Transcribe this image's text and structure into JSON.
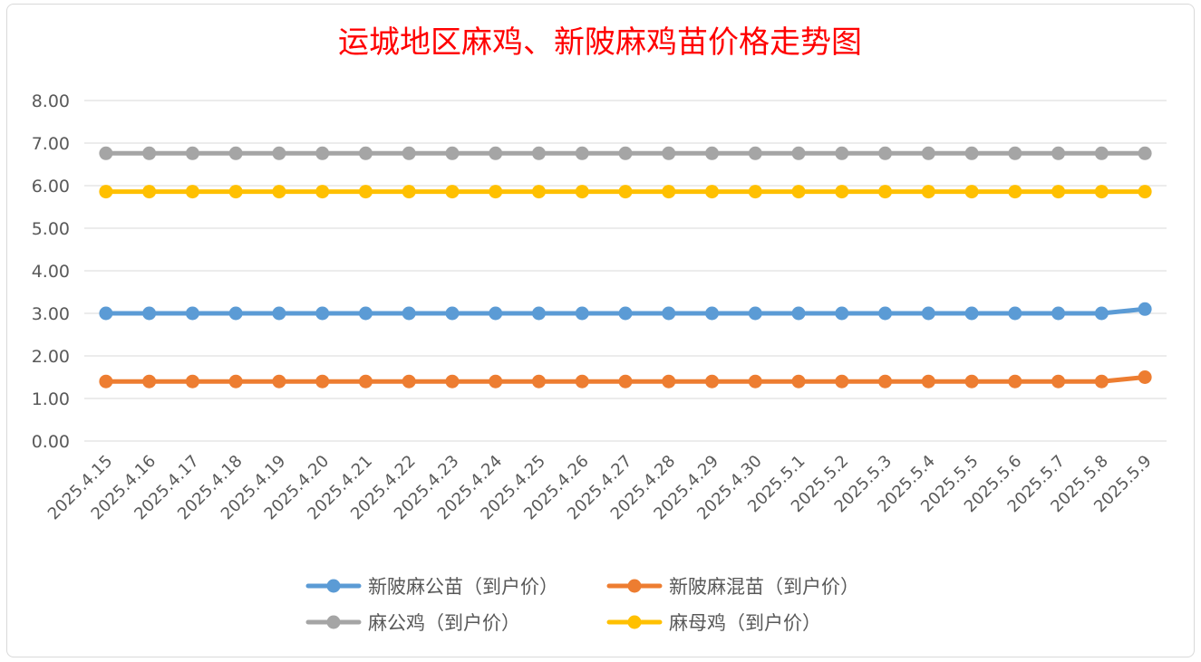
{
  "chart_data": {
    "type": "line",
    "title": "运城地区麻鸡、新陂麻鸡苗价格走势图",
    "xlabel": "",
    "ylabel": "",
    "ylim": [
      0,
      8
    ],
    "yticks": [
      "0.00",
      "1.00",
      "2.00",
      "3.00",
      "4.00",
      "5.00",
      "6.00",
      "7.00",
      "8.00"
    ],
    "grid": true,
    "legend_position": "bottom",
    "categories": [
      "2025.4.15",
      "2025.4.16",
      "2025.4.17",
      "2025.4.18",
      "2025.4.19",
      "2025.4.20",
      "2025.4.21",
      "2025.4.22",
      "2025.4.23",
      "2025.4.24",
      "2025.4.25",
      "2025.4.26",
      "2025.4.27",
      "2025.4.28",
      "2025.4.29",
      "2025.4.30",
      "2025.5.1",
      "2025.5.2",
      "2025.5.3",
      "2025.5.4",
      "2025.5.5",
      "2025.5.6",
      "2025.5.7",
      "2025.5.8",
      "2025.5.9"
    ],
    "series": [
      {
        "name": "新陂麻公苗（到户价）",
        "color": "#5b9bd5",
        "values": [
          3.0,
          3.0,
          3.0,
          3.0,
          3.0,
          3.0,
          3.0,
          3.0,
          3.0,
          3.0,
          3.0,
          3.0,
          3.0,
          3.0,
          3.0,
          3.0,
          3.0,
          3.0,
          3.0,
          3.0,
          3.0,
          3.0,
          3.0,
          3.0,
          3.1
        ]
      },
      {
        "name": "新陂麻混苗（到户价）",
        "color": "#ed7d31",
        "values": [
          1.4,
          1.4,
          1.4,
          1.4,
          1.4,
          1.4,
          1.4,
          1.4,
          1.4,
          1.4,
          1.4,
          1.4,
          1.4,
          1.4,
          1.4,
          1.4,
          1.4,
          1.4,
          1.4,
          1.4,
          1.4,
          1.4,
          1.4,
          1.4,
          1.5
        ]
      },
      {
        "name": "麻公鸡（到户价）",
        "color": "#a5a5a5",
        "values": [
          6.76,
          6.76,
          6.76,
          6.76,
          6.76,
          6.76,
          6.76,
          6.76,
          6.76,
          6.76,
          6.76,
          6.76,
          6.76,
          6.76,
          6.76,
          6.76,
          6.76,
          6.76,
          6.76,
          6.76,
          6.76,
          6.76,
          6.76,
          6.76,
          6.76
        ]
      },
      {
        "name": "麻母鸡（到户价）",
        "color": "#ffc000",
        "values": [
          5.86,
          5.86,
          5.86,
          5.86,
          5.86,
          5.86,
          5.86,
          5.86,
          5.86,
          5.86,
          5.86,
          5.86,
          5.86,
          5.86,
          5.86,
          5.86,
          5.86,
          5.86,
          5.86,
          5.86,
          5.86,
          5.86,
          5.86,
          5.86,
          5.86
        ]
      }
    ],
    "gridline_color": "#d9d9d9"
  }
}
